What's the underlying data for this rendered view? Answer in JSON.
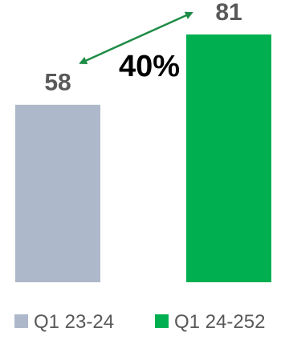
{
  "chart_data": {
    "type": "bar",
    "categories": [
      "Q1 23-24",
      "Q1 24-252"
    ],
    "values": [
      58,
      81
    ],
    "title": "",
    "xlabel": "",
    "ylabel": "",
    "ylim": [
      0,
      81
    ],
    "grid": false,
    "legend_position": "bottom",
    "annotation": {
      "text": "40%",
      "from_category": 0,
      "to_category": 1,
      "arrow_color": "#1E8C45"
    },
    "series": [
      {
        "category": "Q1 23-24",
        "value": 58,
        "color": "#ADB9CA"
      },
      {
        "category": "Q1 24-252",
        "value": 81,
        "color": "#00B050"
      }
    ]
  }
}
